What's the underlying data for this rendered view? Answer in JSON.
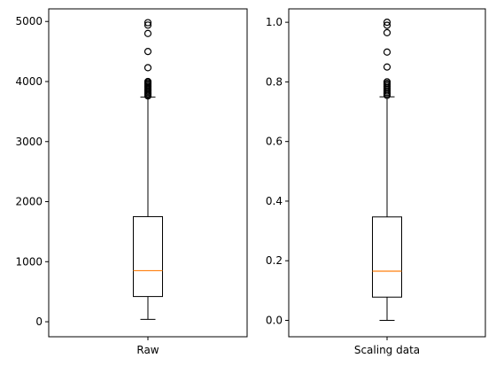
{
  "chart_data": [
    {
      "type": "boxplot",
      "category": "Raw",
      "ylim": [
        -250,
        5210
      ],
      "yticks": [
        0,
        1000,
        2000,
        3000,
        4000,
        5000
      ],
      "ytick_labels": [
        "0",
        "1000",
        "2000",
        "3000",
        "4000",
        "5000"
      ],
      "box": {
        "whisker_low": 40,
        "q1": 420,
        "median": 850,
        "q3": 1750,
        "whisker_high": 3740
      },
      "outliers": [
        3760,
        3780,
        3800,
        3820,
        3840,
        3860,
        3880,
        3900,
        3920,
        3940,
        3960,
        3980,
        4000,
        4230,
        4500,
        4800,
        4940,
        4980
      ],
      "colors": {
        "box": "#000000",
        "median": "#ff7f0e"
      }
    },
    {
      "type": "boxplot",
      "category": "Scaling data",
      "ylim": [
        -0.055,
        1.045
      ],
      "yticks": [
        0.0,
        0.2,
        0.4,
        0.6,
        0.8,
        1.0
      ],
      "ytick_labels": [
        "0.0",
        "0.2",
        "0.4",
        "0.6",
        "0.8",
        "1.0"
      ],
      "box": {
        "whisker_low": 0.0,
        "q1": 0.078,
        "median": 0.165,
        "q3": 0.347,
        "whisker_high": 0.75
      },
      "outliers": [
        0.755,
        0.76,
        0.765,
        0.77,
        0.775,
        0.78,
        0.785,
        0.79,
        0.795,
        0.8,
        0.85,
        0.9,
        0.965,
        0.99,
        1.0
      ],
      "colors": {
        "box": "#000000",
        "median": "#ff7f0e"
      }
    }
  ]
}
